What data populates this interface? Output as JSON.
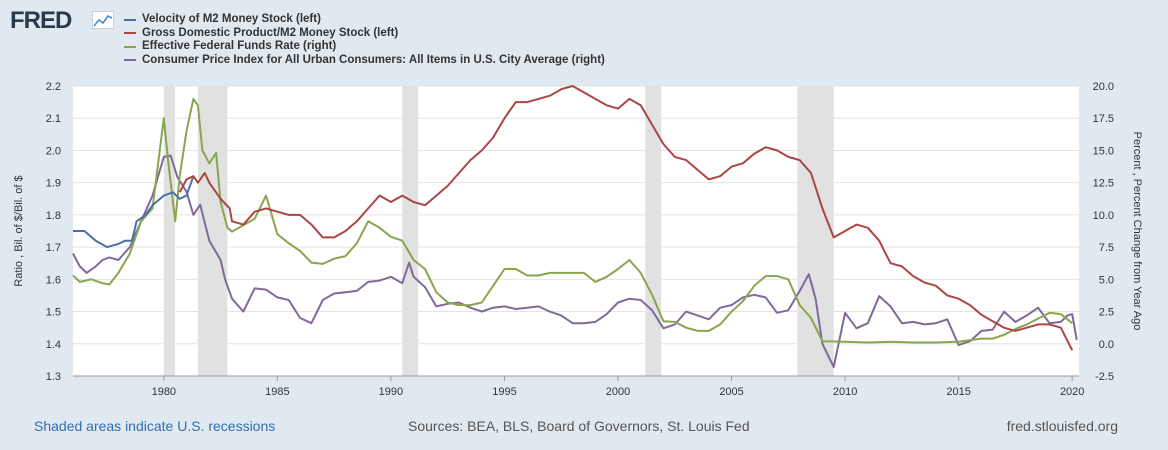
{
  "logo": {
    "text": "FRED"
  },
  "footer": {
    "recessions_note": "Shaded areas indicate U.S. recessions",
    "sources": "Sources: BEA, BLS, Board of Governors, St. Louis Fed",
    "site": "fred.stlouisfed.org"
  },
  "colors": {
    "series1": "#4572a7",
    "series2": "#aa4643",
    "series3": "#89a54e",
    "series4": "#80699b",
    "recession": "#e1e1e1",
    "grid": "#e4e4e4"
  },
  "chart_data": {
    "type": "line",
    "title": "",
    "xlabel": "",
    "ylabel_left": "Ratio , Bil. of $/Bil. of $",
    "ylabel_right": "Percent , Percent Change from Year Ago",
    "xlim": [
      1976,
      2020.3
    ],
    "ylim_left": [
      1.3,
      2.2
    ],
    "ylim_right": [
      -2.5,
      20.0
    ],
    "x_ticks": [
      1980,
      1985,
      1990,
      1995,
      2000,
      2005,
      2010,
      2015,
      2020
    ],
    "y_ticks_left": [
      "1.3",
      "1.4",
      "1.5",
      "1.6",
      "1.7",
      "1.8",
      "1.9",
      "2.0",
      "2.1",
      "2.2"
    ],
    "y_ticks_right": [
      "-2.5",
      "0.0",
      "2.5",
      "5.0",
      "7.5",
      "10.0",
      "12.5",
      "15.0",
      "17.5",
      "20.0"
    ],
    "recessions": [
      [
        1980.0,
        1980.5
      ],
      [
        1981.5,
        1982.8
      ],
      [
        1990.5,
        1991.2
      ],
      [
        2001.2,
        2001.9
      ],
      [
        2007.9,
        2009.5
      ]
    ],
    "series": [
      {
        "name": "Velocity of M2 Money Stock (left)",
        "axis": "left",
        "color": "#4572a7",
        "points": [
          [
            1976,
            1.75
          ],
          [
            1976.5,
            1.75
          ],
          [
            1977,
            1.72
          ],
          [
            1977.5,
            1.7
          ],
          [
            1978,
            1.71
          ],
          [
            1978.3,
            1.72
          ],
          [
            1978.6,
            1.72
          ],
          [
            1978.8,
            1.78
          ],
          [
            1979.2,
            1.8
          ],
          [
            1979.5,
            1.83
          ],
          [
            1980,
            1.86
          ],
          [
            1980.4,
            1.87
          ],
          [
            1980.7,
            1.85
          ],
          [
            1981,
            1.86
          ],
          [
            1981.3,
            1.92
          ]
        ]
      },
      {
        "name": "Gross Domestic Product/M2 Money Stock (left)",
        "axis": "left",
        "color": "#aa4643",
        "points": [
          [
            1980.7,
            1.87
          ],
          [
            1981,
            1.91
          ],
          [
            1981.3,
            1.92
          ],
          [
            1981.5,
            1.9
          ],
          [
            1981.8,
            1.93
          ],
          [
            1982,
            1.9
          ],
          [
            1982.5,
            1.85
          ],
          [
            1982.9,
            1.82
          ],
          [
            1983,
            1.78
          ],
          [
            1983.5,
            1.77
          ],
          [
            1984,
            1.81
          ],
          [
            1984.5,
            1.82
          ],
          [
            1985,
            1.81
          ],
          [
            1985.5,
            1.8
          ],
          [
            1986,
            1.8
          ],
          [
            1986.5,
            1.77
          ],
          [
            1987,
            1.73
          ],
          [
            1987.5,
            1.73
          ],
          [
            1988,
            1.75
          ],
          [
            1988.5,
            1.78
          ],
          [
            1989,
            1.82
          ],
          [
            1989.5,
            1.86
          ],
          [
            1990,
            1.84
          ],
          [
            1990.5,
            1.86
          ],
          [
            1991,
            1.84
          ],
          [
            1991.5,
            1.83
          ],
          [
            1992,
            1.86
          ],
          [
            1992.5,
            1.89
          ],
          [
            1993,
            1.93
          ],
          [
            1993.5,
            1.97
          ],
          [
            1994,
            2.0
          ],
          [
            1994.5,
            2.04
          ],
          [
            1995,
            2.1
          ],
          [
            1995.5,
            2.15
          ],
          [
            1996,
            2.15
          ],
          [
            1996.5,
            2.16
          ],
          [
            1997,
            2.17
          ],
          [
            1997.5,
            2.19
          ],
          [
            1998,
            2.2
          ],
          [
            1998.5,
            2.18
          ],
          [
            1999,
            2.16
          ],
          [
            1999.5,
            2.14
          ],
          [
            2000,
            2.13
          ],
          [
            2000.5,
            2.16
          ],
          [
            2001,
            2.14
          ],
          [
            2001.5,
            2.08
          ],
          [
            2002,
            2.02
          ],
          [
            2002.5,
            1.98
          ],
          [
            2003,
            1.97
          ],
          [
            2003.5,
            1.94
          ],
          [
            2004,
            1.91
          ],
          [
            2004.5,
            1.92
          ],
          [
            2005,
            1.95
          ],
          [
            2005.5,
            1.96
          ],
          [
            2006,
            1.99
          ],
          [
            2006.5,
            2.01
          ],
          [
            2007,
            2.0
          ],
          [
            2007.5,
            1.98
          ],
          [
            2008,
            1.97
          ],
          [
            2008.5,
            1.93
          ],
          [
            2009,
            1.82
          ],
          [
            2009.5,
            1.73
          ],
          [
            2010,
            1.75
          ],
          [
            2010.5,
            1.77
          ],
          [
            2011,
            1.76
          ],
          [
            2011.5,
            1.72
          ],
          [
            2012,
            1.65
          ],
          [
            2012.5,
            1.64
          ],
          [
            2013,
            1.61
          ],
          [
            2013.5,
            1.59
          ],
          [
            2014,
            1.58
          ],
          [
            2014.5,
            1.55
          ],
          [
            2015,
            1.54
          ],
          [
            2015.5,
            1.52
          ],
          [
            2016,
            1.49
          ],
          [
            2016.5,
            1.47
          ],
          [
            2017,
            1.45
          ],
          [
            2017.5,
            1.44
          ],
          [
            2018,
            1.45
          ],
          [
            2018.5,
            1.46
          ],
          [
            2019,
            1.46
          ],
          [
            2019.5,
            1.45
          ],
          [
            2020,
            1.38
          ]
        ]
      },
      {
        "name": "Effective Federal Funds Rate (right)",
        "axis": "right",
        "color": "#89a54e",
        "points": [
          [
            1976,
            5.3
          ],
          [
            1976.3,
            4.8
          ],
          [
            1976.8,
            5.0
          ],
          [
            1977.3,
            4.7
          ],
          [
            1977.6,
            4.6
          ],
          [
            1978,
            5.5
          ],
          [
            1978.5,
            7.0
          ],
          [
            1979,
            9.5
          ],
          [
            1979.5,
            10.5
          ],
          [
            1980,
            17.5
          ],
          [
            1980.2,
            14.0
          ],
          [
            1980.5,
            9.5
          ],
          [
            1980.7,
            13.0
          ],
          [
            1981,
            16.5
          ],
          [
            1981.3,
            19.0
          ],
          [
            1981.5,
            18.5
          ],
          [
            1981.7,
            15.0
          ],
          [
            1982,
            14.0
          ],
          [
            1982.3,
            14.8
          ],
          [
            1982.5,
            11.0
          ],
          [
            1982.8,
            9.0
          ],
          [
            1983,
            8.7
          ],
          [
            1983.5,
            9.2
          ],
          [
            1984,
            9.7
          ],
          [
            1984.5,
            11.5
          ],
          [
            1985,
            8.5
          ],
          [
            1985.5,
            7.8
          ],
          [
            1986,
            7.2
          ],
          [
            1986.5,
            6.3
          ],
          [
            1987,
            6.2
          ],
          [
            1987.5,
            6.6
          ],
          [
            1988,
            6.8
          ],
          [
            1988.5,
            7.8
          ],
          [
            1989,
            9.5
          ],
          [
            1989.5,
            9.0
          ],
          [
            1990,
            8.3
          ],
          [
            1990.5,
            8.0
          ],
          [
            1991,
            6.5
          ],
          [
            1991.5,
            5.8
          ],
          [
            1992,
            4.0
          ],
          [
            1992.5,
            3.2
          ],
          [
            1993,
            3.0
          ],
          [
            1993.5,
            3.0
          ],
          [
            1994,
            3.2
          ],
          [
            1994.5,
            4.5
          ],
          [
            1995,
            5.8
          ],
          [
            1995.5,
            5.8
          ],
          [
            1996,
            5.3
          ],
          [
            1996.5,
            5.3
          ],
          [
            1997,
            5.5
          ],
          [
            1997.5,
            5.5
          ],
          [
            1998,
            5.5
          ],
          [
            1998.5,
            5.5
          ],
          [
            1999,
            4.8
          ],
          [
            1999.5,
            5.2
          ],
          [
            2000,
            5.8
          ],
          [
            2000.5,
            6.5
          ],
          [
            2001,
            5.5
          ],
          [
            2001.5,
            3.8
          ],
          [
            2002,
            1.75
          ],
          [
            2002.5,
            1.7
          ],
          [
            2003,
            1.25
          ],
          [
            2003.5,
            1.0
          ],
          [
            2004,
            1.0
          ],
          [
            2004.5,
            1.5
          ],
          [
            2005,
            2.5
          ],
          [
            2005.5,
            3.3
          ],
          [
            2006,
            4.5
          ],
          [
            2006.5,
            5.25
          ],
          [
            2007,
            5.25
          ],
          [
            2007.5,
            5.0
          ],
          [
            2008,
            3.0
          ],
          [
            2008.5,
            2.0
          ],
          [
            2009,
            0.2
          ],
          [
            2010,
            0.15
          ],
          [
            2011,
            0.1
          ],
          [
            2012,
            0.15
          ],
          [
            2013,
            0.1
          ],
          [
            2014,
            0.1
          ],
          [
            2015,
            0.15
          ],
          [
            2016,
            0.4
          ],
          [
            2016.5,
            0.4
          ],
          [
            2017,
            0.7
          ],
          [
            2017.5,
            1.15
          ],
          [
            2018,
            1.5
          ],
          [
            2018.5,
            1.95
          ],
          [
            2019,
            2.4
          ],
          [
            2019.5,
            2.3
          ],
          [
            2020,
            1.6
          ]
        ]
      },
      {
        "name": "Consumer Price Index for All Urban Consumers: All Items in U.S. City Average (right)",
        "axis": "right",
        "color": "#80699b",
        "points": [
          [
            1976,
            7.0
          ],
          [
            1976.3,
            6.0
          ],
          [
            1976.6,
            5.5
          ],
          [
            1977,
            6.0
          ],
          [
            1977.3,
            6.5
          ],
          [
            1977.6,
            6.7
          ],
          [
            1978,
            6.5
          ],
          [
            1978.5,
            7.5
          ],
          [
            1979,
            9.5
          ],
          [
            1979.5,
            11.5
          ],
          [
            1980,
            14.5
          ],
          [
            1980.3,
            14.6
          ],
          [
            1980.6,
            12.9
          ],
          [
            1981,
            11.8
          ],
          [
            1981.3,
            10.0
          ],
          [
            1981.6,
            10.8
          ],
          [
            1982,
            8.0
          ],
          [
            1982.5,
            6.5
          ],
          [
            1982.7,
            5.0
          ],
          [
            1983,
            3.5
          ],
          [
            1983.5,
            2.5
          ],
          [
            1984,
            4.3
          ],
          [
            1984.5,
            4.2
          ],
          [
            1985,
            3.6
          ],
          [
            1985.5,
            3.4
          ],
          [
            1986,
            2.0
          ],
          [
            1986.5,
            1.6
          ],
          [
            1987,
            3.4
          ],
          [
            1987.5,
            3.9
          ],
          [
            1988,
            4.0
          ],
          [
            1988.5,
            4.1
          ],
          [
            1989,
            4.8
          ],
          [
            1989.5,
            4.9
          ],
          [
            1990,
            5.2
          ],
          [
            1990.5,
            4.7
          ],
          [
            1990.8,
            6.3
          ],
          [
            1991,
            5.2
          ],
          [
            1991.5,
            4.4
          ],
          [
            1992,
            2.9
          ],
          [
            1992.5,
            3.1
          ],
          [
            1993,
            3.2
          ],
          [
            1993.5,
            2.8
          ],
          [
            1994,
            2.5
          ],
          [
            1994.5,
            2.8
          ],
          [
            1995,
            2.9
          ],
          [
            1995.5,
            2.7
          ],
          [
            1996,
            2.8
          ],
          [
            1996.5,
            2.9
          ],
          [
            1997,
            2.5
          ],
          [
            1997.5,
            2.2
          ],
          [
            1998,
            1.6
          ],
          [
            1998.5,
            1.6
          ],
          [
            1999,
            1.7
          ],
          [
            1999.5,
            2.3
          ],
          [
            2000,
            3.2
          ],
          [
            2000.5,
            3.5
          ],
          [
            2001,
            3.4
          ],
          [
            2001.5,
            2.6
          ],
          [
            2002,
            1.2
          ],
          [
            2002.5,
            1.5
          ],
          [
            2003,
            2.5
          ],
          [
            2003.5,
            2.2
          ],
          [
            2004,
            1.9
          ],
          [
            2004.5,
            2.8
          ],
          [
            2005,
            3.0
          ],
          [
            2005.5,
            3.6
          ],
          [
            2006,
            3.8
          ],
          [
            2006.5,
            3.6
          ],
          [
            2007,
            2.4
          ],
          [
            2007.5,
            2.6
          ],
          [
            2008,
            4.1
          ],
          [
            2008.4,
            5.4
          ],
          [
            2008.7,
            3.5
          ],
          [
            2009,
            0.0
          ],
          [
            2009.5,
            -1.8
          ],
          [
            2010,
            2.4
          ],
          [
            2010.5,
            1.2
          ],
          [
            2011,
            1.6
          ],
          [
            2011.5,
            3.7
          ],
          [
            2012,
            2.9
          ],
          [
            2012.5,
            1.6
          ],
          [
            2013,
            1.7
          ],
          [
            2013.5,
            1.5
          ],
          [
            2014,
            1.6
          ],
          [
            2014.5,
            1.9
          ],
          [
            2015,
            -0.1
          ],
          [
            2015.5,
            0.2
          ],
          [
            2016,
            1.0
          ],
          [
            2016.5,
            1.1
          ],
          [
            2017,
            2.5
          ],
          [
            2017.5,
            1.7
          ],
          [
            2018,
            2.2
          ],
          [
            2018.5,
            2.8
          ],
          [
            2019,
            1.6
          ],
          [
            2019.5,
            1.7
          ],
          [
            2019.8,
            2.2
          ],
          [
            2020,
            2.3
          ],
          [
            2020.2,
            0.3
          ]
        ]
      }
    ]
  }
}
